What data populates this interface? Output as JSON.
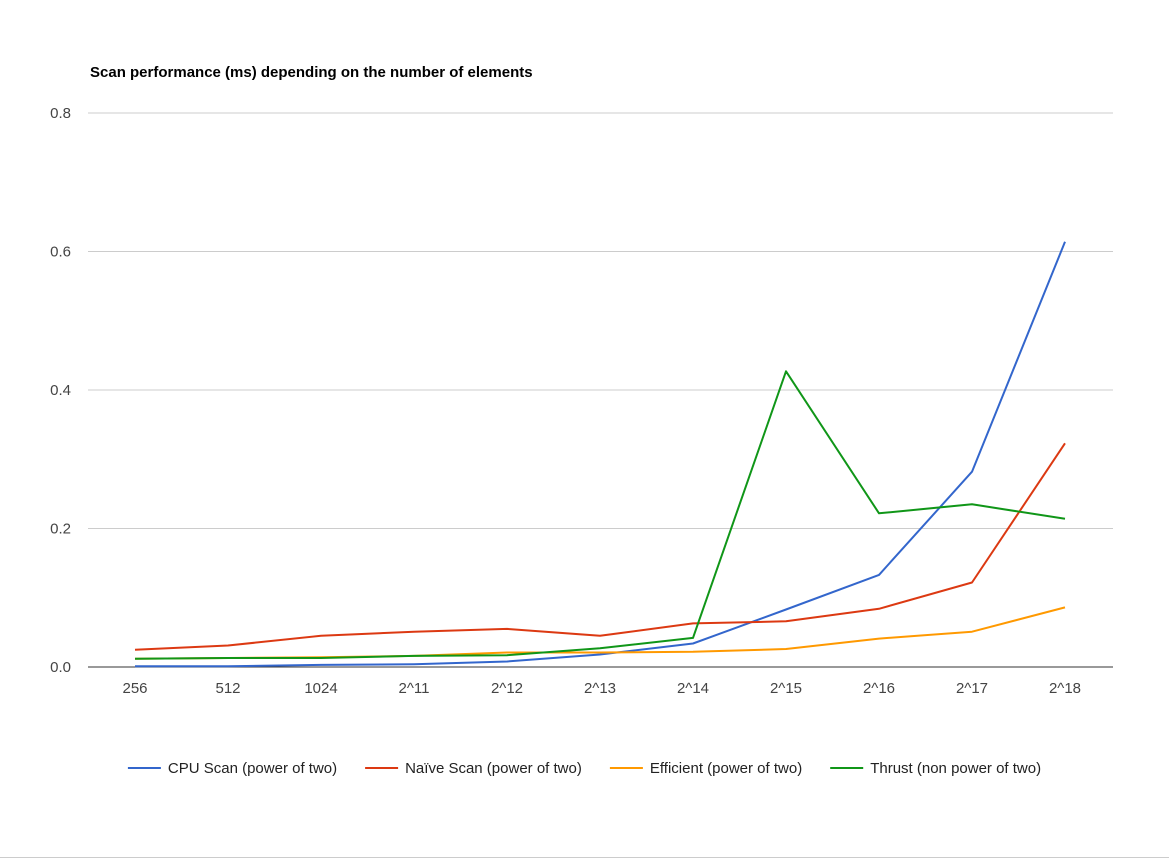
{
  "chart_data": {
    "type": "line",
    "title": "Scan performance (ms) depending on the number of elements",
    "xlabel": "",
    "ylabel": "",
    "categories": [
      "256",
      "512",
      "1024",
      "2^11",
      "2^12",
      "2^13",
      "2^14",
      "2^15",
      "2^16",
      "2^17",
      "2^18"
    ],
    "ylim": [
      0,
      0.8
    ],
    "yticks": [
      "0.0",
      "0.2",
      "0.4",
      "0.6",
      "0.8"
    ],
    "grid": true,
    "legend_position": "bottom",
    "series": [
      {
        "name": "CPU Scan (power of two)",
        "color": "#3366cc",
        "values": [
          0.001,
          0.001,
          0.003,
          0.004,
          0.008,
          0.018,
          0.034,
          0.083,
          0.133,
          0.282,
          0.614
        ]
      },
      {
        "name": "Naïve Scan (power of two)",
        "color": "#dc3912",
        "values": [
          0.025,
          0.031,
          0.045,
          0.051,
          0.055,
          0.045,
          0.063,
          0.066,
          0.084,
          0.122,
          0.323
        ]
      },
      {
        "name": "Efficient (power of two)",
        "color": "#ff9900",
        "values": [
          0.012,
          0.013,
          0.014,
          0.016,
          0.021,
          0.021,
          0.022,
          0.026,
          0.041,
          0.051,
          0.086
        ]
      },
      {
        "name": "Thrust (non power of two)",
        "color": "#109618",
        "values": [
          0.012,
          0.013,
          0.013,
          0.016,
          0.017,
          0.027,
          0.042,
          0.427,
          0.222,
          0.235,
          0.214
        ]
      }
    ]
  }
}
